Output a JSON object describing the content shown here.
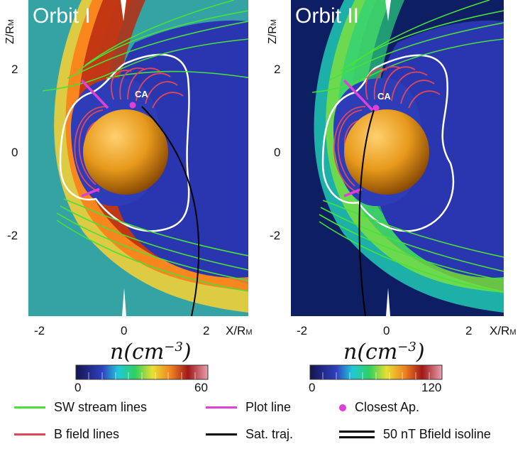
{
  "panels": [
    {
      "title": "Orbit I",
      "ca_label": "CA",
      "y_ticks": [
        "2",
        "0",
        "-2"
      ],
      "x_ticks": [
        "-2",
        "0",
        "2"
      ],
      "x_axis_label": "X/R",
      "x_axis_sub": "M",
      "y_axis_label": "Z/R",
      "y_axis_sub": "M",
      "background_color": "#35a3a3"
    },
    {
      "title": "Orbit II",
      "ca_label": "CA",
      "y_ticks": [
        "2",
        "0",
        "-2"
      ],
      "x_ticks": [
        "-2",
        "0",
        "2"
      ],
      "x_axis_label": "X/R",
      "x_axis_sub": "M",
      "y_axis_label": "Z/R",
      "y_axis_sub": "M",
      "background_color": "#0d1f62"
    }
  ],
  "colorbars": [
    {
      "min": "0",
      "max": "60"
    },
    {
      "min": "0",
      "max": "120"
    }
  ],
  "colorbar_title": {
    "base": "n(cm",
    "exp": "−3",
    "close": ")"
  },
  "legend": {
    "sw": "SW stream lines",
    "bfield": "B field lines",
    "plot": "Plot line",
    "traj": "Sat. traj.",
    "closest": "Closest Ap.",
    "isoline": "50 nT Bfield isoline"
  },
  "colors": {
    "sw": "#49e03a",
    "bfield": "#e04858",
    "plot": "#e040d8",
    "traj": "#000000",
    "closest": "#e040d8",
    "planet": "#f0a020"
  }
}
